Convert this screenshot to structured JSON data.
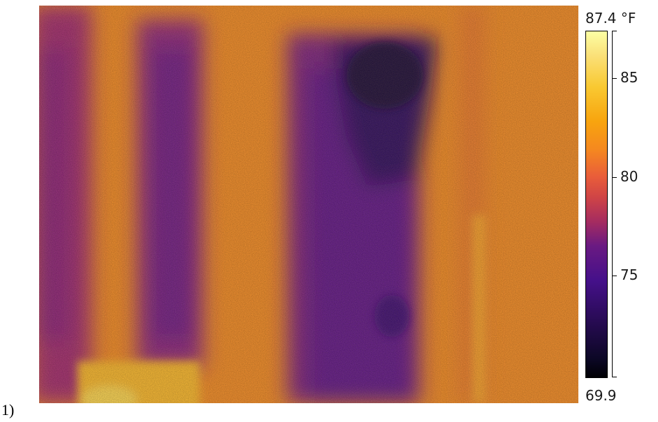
{
  "figure_label": "1)",
  "image": {
    "description_icon": "thermal-image-icon",
    "palette": "inferno"
  },
  "colorbar": {
    "max_label": "87.4 °F",
    "min_label": "69.9",
    "min_value": 69.9,
    "max_value": 87.4,
    "ticks": [
      {
        "value": 85,
        "label": "85"
      },
      {
        "value": 80,
        "label": "80"
      },
      {
        "value": 75,
        "label": "75"
      }
    ]
  }
}
